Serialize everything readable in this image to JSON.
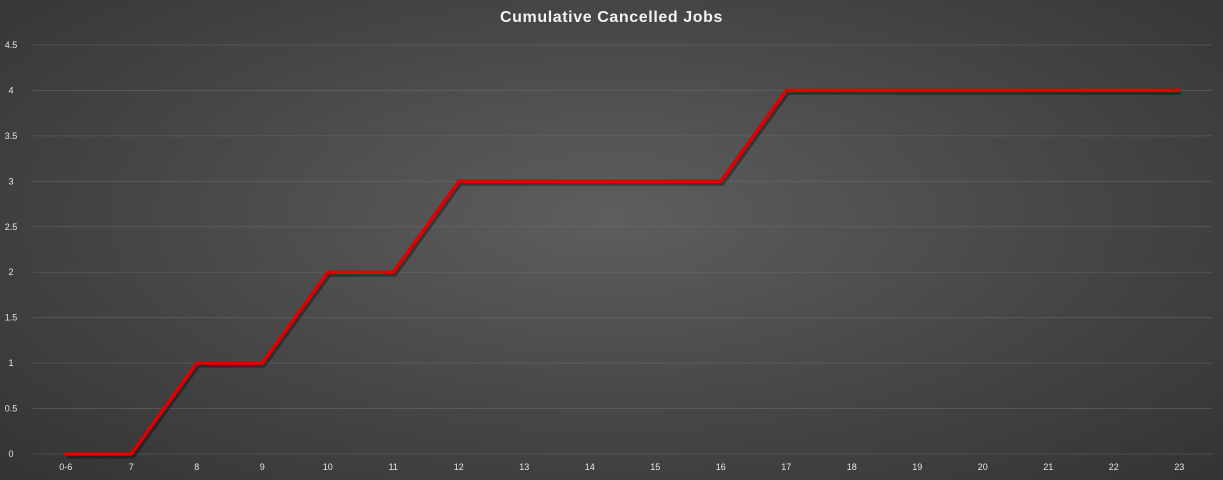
{
  "chart_data": {
    "type": "line",
    "title": "Cumulative Cancelled Jobs",
    "xlabel": "",
    "ylabel": "",
    "categories": [
      "0-6",
      "7",
      "8",
      "9",
      "10",
      "11",
      "12",
      "13",
      "14",
      "15",
      "16",
      "17",
      "18",
      "19",
      "20",
      "21",
      "22",
      "23"
    ],
    "series": [
      {
        "values": [
          0,
          0,
          1,
          1,
          2,
          2,
          3,
          3,
          3,
          3,
          3,
          4,
          4,
          4,
          4,
          4,
          4,
          4
        ]
      }
    ],
    "ylim": [
      0,
      4.5
    ],
    "yticks": [
      "0",
      "0.5",
      "1",
      "1.5",
      "2",
      "2.5",
      "3",
      "3.5",
      "4",
      "4.5"
    ],
    "grid": true,
    "legend": "none",
    "colors": {
      "line": "#e00000"
    }
  }
}
